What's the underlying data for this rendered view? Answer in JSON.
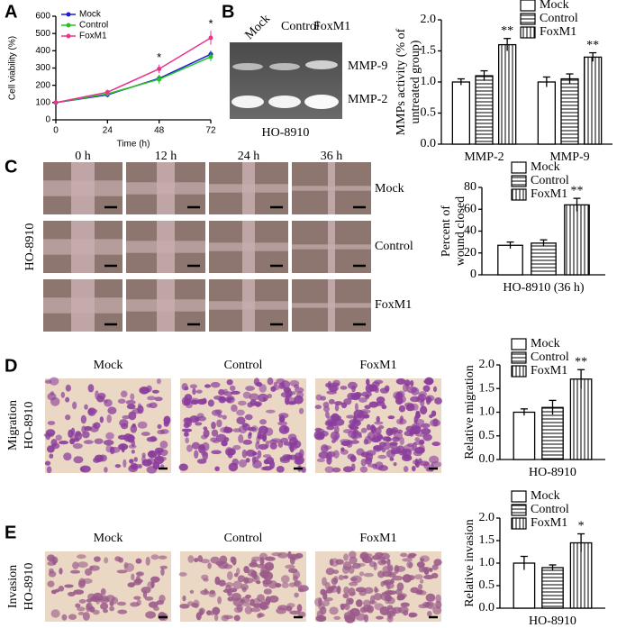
{
  "figure": {
    "letters": [
      "A",
      "B",
      "C",
      "D",
      "E"
    ],
    "gel": {
      "lanes": [
        "Mock",
        "Control",
        "FoxM1"
      ],
      "bands": [
        "MMP-9",
        "MMP-2"
      ],
      "cell_line": "HO-8910"
    },
    "wound": {
      "times": [
        "0 h",
        "12 h",
        "24 h",
        "36 h"
      ],
      "groups": [
        "Mock",
        "Control",
        "FoxM1"
      ],
      "cell_line": "HO-8910"
    },
    "migration": {
      "groups": [
        "Mock",
        "Control",
        "FoxM1"
      ],
      "assay": "Migration",
      "cell_line": "HO-8910"
    },
    "invasion": {
      "groups": [
        "Mock",
        "Control",
        "FoxM1"
      ],
      "assay": "Invasion",
      "cell_line": "HO-8910"
    }
  },
  "chart_data": [
    {
      "type": "line",
      "xlabel": "Time (h)",
      "ylabel": "Cell viability (%)",
      "x": [
        0,
        24,
        48,
        72
      ],
      "xlim": [
        0,
        72
      ],
      "xticks": [
        0,
        24,
        48,
        72
      ],
      "ylim": [
        0,
        600
      ],
      "yticks": [
        0,
        100,
        200,
        300,
        400,
        500,
        600
      ],
      "series": [
        {
          "name": "Mock",
          "color": "#1c1cd8",
          "values": [
            100,
            145,
            240,
            380
          ],
          "errors": [
            5,
            15,
            20,
            20
          ]
        },
        {
          "name": "Control",
          "color": "#21c421",
          "values": [
            100,
            150,
            235,
            365
          ],
          "errors": [
            5,
            15,
            25,
            25
          ]
        },
        {
          "name": "FoxM1",
          "color": "#e8348a",
          "values": [
            100,
            160,
            295,
            475
          ],
          "errors": [
            5,
            15,
            25,
            40
          ],
          "annotations": [
            null,
            null,
            "*",
            "*"
          ]
        }
      ]
    },
    {
      "type": "bar",
      "ylabel": [
        "MMPs activity (% of",
        "untreated group)"
      ],
      "categories": [
        "MMP-2",
        "MMP-9"
      ],
      "ylim": [
        0,
        2
      ],
      "yticks": [
        {
          "value": 0,
          "label": "0.0"
        },
        0.5,
        {
          "value": 1,
          "label": "1.0"
        },
        1.5,
        {
          "value": 2,
          "label": "2.0"
        }
      ],
      "series": [
        {
          "name": "Mock",
          "pattern": "none",
          "values": [
            1.0,
            1.0
          ],
          "errors": [
            0.05,
            0.08
          ]
        },
        {
          "name": "Control",
          "pattern": "horizontal",
          "values": [
            1.1,
            1.05
          ],
          "errors": [
            0.08,
            0.08
          ]
        },
        {
          "name": "FoxM1",
          "pattern": "vertical",
          "values": [
            1.6,
            1.4
          ],
          "errors": [
            0.1,
            0.07
          ],
          "annotations": [
            "**",
            "**"
          ]
        }
      ]
    },
    {
      "type": "bar",
      "ylabel": [
        "Percent of",
        "wound closed"
      ],
      "categories": [
        "HO-8910 (36 h)"
      ],
      "ylim": [
        0,
        80
      ],
      "yticks": [
        0,
        20,
        40,
        60,
        80
      ],
      "series": [
        {
          "name": "Mock",
          "pattern": "none",
          "values": [
            27
          ],
          "errors": [
            3
          ]
        },
        {
          "name": "Control",
          "pattern": "horizontal",
          "values": [
            29
          ],
          "errors": [
            3
          ]
        },
        {
          "name": "FoxM1",
          "pattern": "vertical",
          "values": [
            64
          ],
          "errors": [
            6
          ],
          "annotations": [
            "**"
          ]
        }
      ]
    },
    {
      "type": "bar",
      "ylabel": [
        "Relative migration"
      ],
      "categories": [
        "HO-8910"
      ],
      "ylim": [
        0,
        2
      ],
      "yticks": [
        {
          "value": 0,
          "label": "0.0"
        },
        0.5,
        {
          "value": 1,
          "label": "1.0"
        },
        1.5,
        {
          "value": 2,
          "label": "2.0"
        }
      ],
      "series": [
        {
          "name": "Mock",
          "pattern": "none",
          "values": [
            1.0
          ],
          "errors": [
            0.07
          ]
        },
        {
          "name": "Control",
          "pattern": "horizontal",
          "values": [
            1.1
          ],
          "errors": [
            0.15
          ]
        },
        {
          "name": "FoxM1",
          "pattern": "vertical",
          "values": [
            1.7
          ],
          "errors": [
            0.2
          ],
          "annotations": [
            "**"
          ]
        }
      ]
    },
    {
      "type": "bar",
      "ylabel": [
        "Relative invasion"
      ],
      "categories": [
        "HO-8910"
      ],
      "ylim": [
        0,
        2
      ],
      "yticks": [
        {
          "value": 0,
          "label": "0.0"
        },
        0.5,
        {
          "value": 1,
          "label": "1.0"
        },
        1.5,
        {
          "value": 2,
          "label": "2.0"
        }
      ],
      "series": [
        {
          "name": "Mock",
          "pattern": "none",
          "values": [
            1.0
          ],
          "errors": [
            0.15
          ]
        },
        {
          "name": "Control",
          "pattern": "horizontal",
          "values": [
            0.9
          ],
          "errors": [
            0.06
          ]
        },
        {
          "name": "FoxM1",
          "pattern": "vertical",
          "values": [
            1.45
          ],
          "errors": [
            0.2
          ],
          "annotations": [
            "*"
          ]
        }
      ]
    }
  ]
}
